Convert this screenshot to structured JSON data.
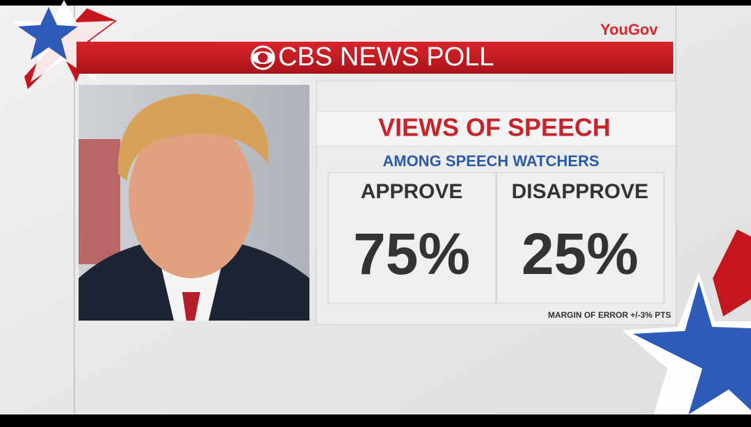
{
  "header": {
    "network": "CBS NEWS POLL",
    "partner": "YouGov"
  },
  "panel": {
    "title": "VIEWS OF SPEECH",
    "subtitle": "AMONG SPEECH WATCHERS",
    "results": [
      {
        "label": "APPROVE",
        "value": "75%"
      },
      {
        "label": "DISAPPROVE",
        "value": "25%"
      }
    ],
    "footnote": "MARGIN OF ERROR +/-3% PTS"
  }
}
